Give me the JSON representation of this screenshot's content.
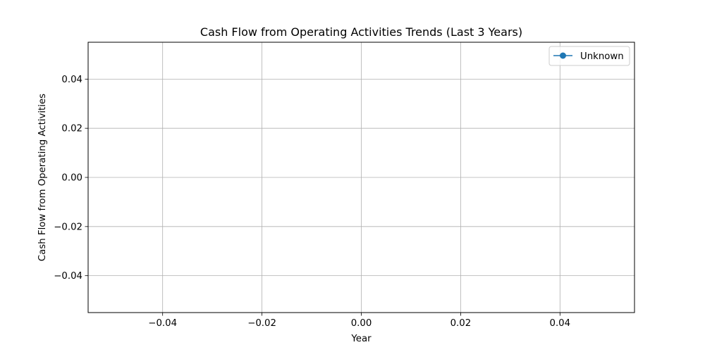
{
  "chart_data": {
    "type": "line",
    "title": "Cash Flow from Operating Activities Trends (Last 3 Years)",
    "xlabel": "Year",
    "ylabel": "Cash Flow from Operating Activities",
    "xlim": [
      -0.055,
      0.055
    ],
    "ylim": [
      -0.055,
      0.055
    ],
    "x_ticks": [
      -0.04,
      -0.02,
      0.0,
      0.02,
      0.04
    ],
    "x_tick_labels": [
      "−0.04",
      "−0.02",
      "0.00",
      "0.02",
      "0.04"
    ],
    "y_ticks": [
      0.04,
      0.02,
      0.0,
      -0.02,
      -0.04
    ],
    "y_tick_labels": [
      "0.04",
      "0.02",
      "0.00",
      "−0.02",
      "−0.04"
    ],
    "grid": true,
    "legend_position": "top-right",
    "series": [
      {
        "name": "Unknown",
        "color": "#1f77b4",
        "marker": "circle",
        "x": [],
        "y": []
      }
    ]
  }
}
